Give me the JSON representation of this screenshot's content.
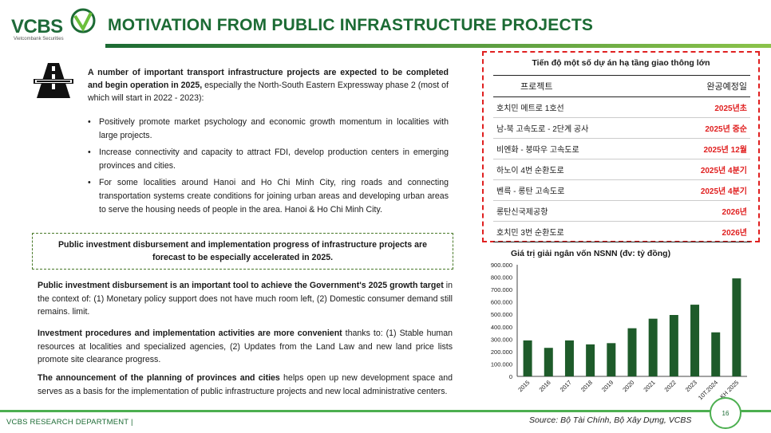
{
  "brand": {
    "name": "VCBS",
    "subtitle": "Vietcombank Securities"
  },
  "title": "MOTIVATION FROM PUBLIC INFRASTRUCTURE PROJECTS",
  "intro": {
    "bold": "A number of important transport infrastructure projects are expected to be completed and begin operation in 2025,",
    "text": " especially the North-South Eastern Expressway phase 2 (most of which will start in 2022 - 2023):"
  },
  "bullets": [
    "Positively promote market psychology and economic growth momentum in localities with large projects.",
    "Increase connectivity and capacity to attract FDI, develop production centers in emerging provinces and cities.",
    "For some localities around Hanoi and Ho Chi Minh City, ring roads and connecting transportation systems create conditions for joining urban areas and developing urban areas to serve the housing needs of people in the area. Hanoi & Ho Chi Minh City."
  ],
  "highlight_box": "Public investment disbursement and implementation progress of infrastructure projects are forecast to be especially accelerated in 2025.",
  "paragraphs": [
    {
      "bold": "Public investment disbursement is an important tool to achieve the Government's 2025 growth target",
      "text": " in the context of: (1) Monetary policy support does not have much room left, (2) Domestic consumer demand still remains. limit."
    },
    {
      "bold": "Investment procedures and implementation activities are more convenient",
      "text": " thanks to: (1) Stable human resources at localities and specialized agencies, (2) Updates from the Land Law and new land price lists promote site clearance progress."
    },
    {
      "bold": "The announcement of the planning of provinces and cities",
      "text": " helps open up new development space and serves as a basis for the implementation of public infrastructure projects and new local administrative centers."
    }
  ],
  "project_table": {
    "title": "Tiến độ một số dự án hạ tầng giao thông lớn",
    "headers": [
      "프로젝트",
      "완공예정일"
    ],
    "rows": [
      [
        "호치민 메트로 1호선",
        "2025년초"
      ],
      [
        "남-북 고속도로 - 2단계 공사",
        "2025년 중순"
      ],
      [
        "비엔화 - 붕따우 고속도로",
        "2025년 12월"
      ],
      [
        "하노이 4번 순환도로",
        "2025년 4분기"
      ],
      [
        "벤륵 - 롱탄 고속도로",
        "2025년 4분기"
      ],
      [
        "롱탄신국제공항",
        "2026년"
      ],
      [
        "호치민 3번 순환도로",
        "2026년"
      ]
    ]
  },
  "chart_data": {
    "type": "bar",
    "title": "Giá trị giải ngân vốn NSNN (đv: tỷ đồng)",
    "categories": [
      "2015",
      "2016",
      "2017",
      "2018",
      "2019",
      "2020",
      "2021",
      "2022",
      "2023",
      "10T.2024",
      "KH 2025"
    ],
    "values": [
      290000,
      230000,
      290000,
      258000,
      268000,
      388000,
      465000,
      495000,
      578000,
      355000,
      790000
    ],
    "ylim": [
      0,
      900000
    ],
    "yticks": [
      "900.000",
      "800.000",
      "700.000",
      "600.000",
      "500.000",
      "400.000",
      "300.000",
      "200.000",
      "100.000",
      "0"
    ],
    "bar_color": "#1e5b2a",
    "grid": false
  },
  "source": "Source: Bộ Tài Chính, Bộ Xây Dựng, VCBS",
  "footer": "VCBS RESEARCH DEPARTMENT |",
  "page_number": "16",
  "colors": {
    "brand_green": "#1c6b34",
    "accent_red": "#e02020"
  }
}
